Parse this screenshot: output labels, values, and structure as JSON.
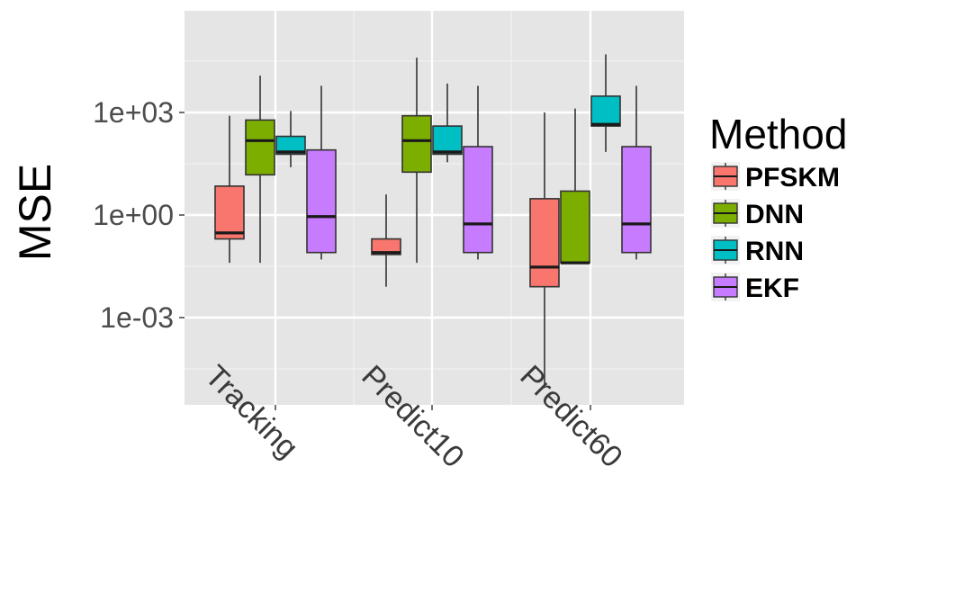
{
  "chart_data": {
    "type": "box",
    "ylabel": "MSE",
    "xlabel": "",
    "y_scale": "log10",
    "y_ticks": [
      {
        "value": 1000,
        "label": "1e+03"
      },
      {
        "value": 1,
        "label": "1e+00"
      },
      {
        "value": 0.001,
        "label": "1e-03"
      }
    ],
    "ylim": [
      2e-06,
      1000000
    ],
    "categories": [
      "Tracking",
      "Predict10",
      "Predict60"
    ],
    "legend": {
      "title": "Method",
      "position": "right"
    },
    "grid": true,
    "panel_background": "#e5e5e5",
    "series": [
      {
        "name": "PFSKM",
        "color": "#f8766d",
        "boxes": [
          {
            "category": "Tracking",
            "min": 0.04,
            "q1": 0.2,
            "median": 0.3,
            "q3": 7,
            "max": 800
          },
          {
            "category": "Predict10",
            "min": 0.008,
            "q1": 0.07,
            "median": 0.08,
            "q3": 0.2,
            "max": 4
          },
          {
            "category": "Predict60",
            "min": 1e-05,
            "q1": 0.008,
            "median": 0.03,
            "q3": 3,
            "max": 1000
          }
        ]
      },
      {
        "name": "DNN",
        "color": "#7cae00",
        "boxes": [
          {
            "category": "Tracking",
            "min": 0.04,
            "q1": 15,
            "median": 150,
            "q3": 600,
            "max": 12000
          },
          {
            "category": "Predict10",
            "min": 0.04,
            "q1": 18,
            "median": 150,
            "q3": 800,
            "max": 40000
          },
          {
            "category": "Predict60",
            "min": 0.04,
            "q1": 0.04,
            "median": 0.04,
            "q3": 5,
            "max": 1300
          }
        ]
      },
      {
        "name": "RNN",
        "color": "#00bfc4",
        "boxes": [
          {
            "category": "Tracking",
            "min": 25,
            "q1": 60,
            "median": 70,
            "q3": 200,
            "max": 1100
          },
          {
            "category": "Predict10",
            "min": 35,
            "q1": 60,
            "median": 70,
            "q3": 400,
            "max": 7000
          },
          {
            "category": "Predict60",
            "min": 70,
            "q1": 400,
            "median": 450,
            "q3": 3000,
            "max": 50000
          }
        ]
      },
      {
        "name": "EKF",
        "color": "#c77cff",
        "boxes": [
          {
            "category": "Tracking",
            "min": 0.05,
            "q1": 0.08,
            "median": 0.9,
            "q3": 80,
            "max": 6000
          },
          {
            "category": "Predict10",
            "min": 0.05,
            "q1": 0.08,
            "median": 0.55,
            "q3": 100,
            "max": 6000
          },
          {
            "category": "Predict60",
            "min": 0.05,
            "q1": 0.08,
            "median": 0.55,
            "q3": 100,
            "max": 6000
          }
        ]
      }
    ]
  }
}
